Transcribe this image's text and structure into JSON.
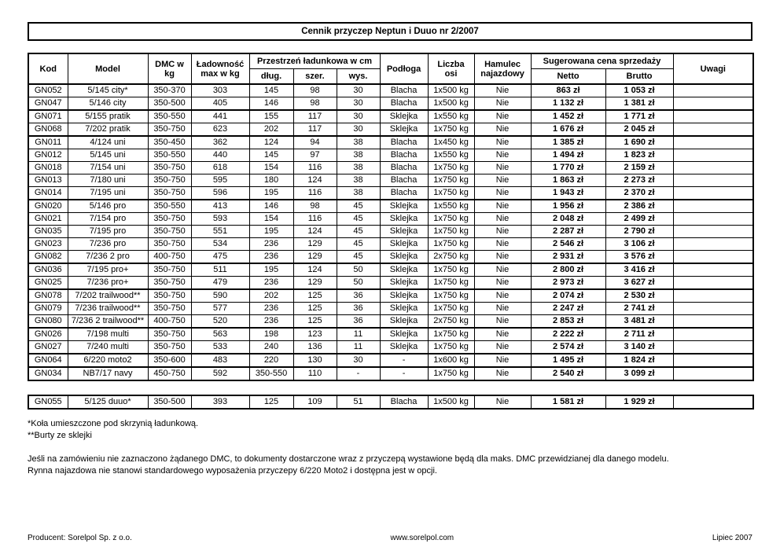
{
  "title": "Cennik przyczep Neptun i Duuo nr 2/2007",
  "table": {
    "headers": {
      "kod": "Kod",
      "model": "Model",
      "dmc": "DMC w\nkg",
      "ladownosc": "Ładowność\nmax w kg",
      "przestrzen": "Przestrzeń ładunkowa w cm",
      "dlug": "dług.",
      "szer": "szer.",
      "wys": "wys.",
      "podloga": "Podłoga",
      "osie": "Liczba\nosi",
      "hamulec": "Hamulec\nnajazdowy",
      "cena": "Sugerowana cena sprzedaży",
      "netto": "Netto",
      "brutto": "Brutto",
      "uwagi": "Uwagi"
    },
    "groups": [
      [
        {
          "kod": "GN052",
          "model": "5/145 city*",
          "dmc": "350-370",
          "ladownosc": "303",
          "dlug": "145",
          "szer": "98",
          "wys": "30",
          "podloga": "Blacha",
          "osie": "1x500 kg",
          "hamulec": "Nie",
          "netto": "863 zł",
          "brutto": "1 053 zł",
          "uwagi": ""
        },
        {
          "kod": "GN047",
          "model": "5/146 city",
          "dmc": "350-500",
          "ladownosc": "405",
          "dlug": "146",
          "szer": "98",
          "wys": "30",
          "podloga": "Blacha",
          "osie": "1x500 kg",
          "hamulec": "Nie",
          "netto": "1 132 zł",
          "brutto": "1 381 zł",
          "uwagi": ""
        }
      ],
      [
        {
          "kod": "GN071",
          "model": "5/155 pratik",
          "dmc": "350-550",
          "ladownosc": "441",
          "dlug": "155",
          "szer": "117",
          "wys": "30",
          "podloga": "Sklejka",
          "osie": "1x550 kg",
          "hamulec": "Nie",
          "netto": "1 452 zł",
          "brutto": "1 771 zł",
          "uwagi": ""
        },
        {
          "kod": "GN068",
          "model": "7/202 pratik",
          "dmc": "350-750",
          "ladownosc": "623",
          "dlug": "202",
          "szer": "117",
          "wys": "30",
          "podloga": "Sklejka",
          "osie": "1x750 kg",
          "hamulec": "Nie",
          "netto": "1 676 zł",
          "brutto": "2 045 zł",
          "uwagi": ""
        }
      ],
      [
        {
          "kod": "GN011",
          "model": "4/124 uni",
          "dmc": "350-450",
          "ladownosc": "362",
          "dlug": "124",
          "szer": "94",
          "wys": "38",
          "podloga": "Blacha",
          "osie": "1x450 kg",
          "hamulec": "Nie",
          "netto": "1 385 zł",
          "brutto": "1 690 zł",
          "uwagi": ""
        },
        {
          "kod": "GN012",
          "model": "5/145 uni",
          "dmc": "350-550",
          "ladownosc": "440",
          "dlug": "145",
          "szer": "97",
          "wys": "38",
          "podloga": "Blacha",
          "osie": "1x550 kg",
          "hamulec": "Nie",
          "netto": "1 494 zł",
          "brutto": "1 823 zł",
          "uwagi": ""
        },
        {
          "kod": "GN018",
          "model": "7/154 uni",
          "dmc": "350-750",
          "ladownosc": "618",
          "dlug": "154",
          "szer": "116",
          "wys": "38",
          "podloga": "Blacha",
          "osie": "1x750 kg",
          "hamulec": "Nie",
          "netto": "1 770 zł",
          "brutto": "2 159 zł",
          "uwagi": ""
        },
        {
          "kod": "GN013",
          "model": "7/180 uni",
          "dmc": "350-750",
          "ladownosc": "595",
          "dlug": "180",
          "szer": "124",
          "wys": "38",
          "podloga": "Blacha",
          "osie": "1x750 kg",
          "hamulec": "Nie",
          "netto": "1 863 zł",
          "brutto": "2 273 zł",
          "uwagi": ""
        },
        {
          "kod": "GN014",
          "model": "7/195 uni",
          "dmc": "350-750",
          "ladownosc": "596",
          "dlug": "195",
          "szer": "116",
          "wys": "38",
          "podloga": "Blacha",
          "osie": "1x750 kg",
          "hamulec": "Nie",
          "netto": "1 943 zł",
          "brutto": "2 370 zł",
          "uwagi": ""
        }
      ],
      [
        {
          "kod": "GN020",
          "model": "5/146 pro",
          "dmc": "350-550",
          "ladownosc": "413",
          "dlug": "146",
          "szer": "98",
          "wys": "45",
          "podloga": "Sklejka",
          "osie": "1x550 kg",
          "hamulec": "Nie",
          "netto": "1 956 zł",
          "brutto": "2 386 zł",
          "uwagi": ""
        },
        {
          "kod": "GN021",
          "model": "7/154 pro",
          "dmc": "350-750",
          "ladownosc": "593",
          "dlug": "154",
          "szer": "116",
          "wys": "45",
          "podloga": "Sklejka",
          "osie": "1x750 kg",
          "hamulec": "Nie",
          "netto": "2 048 zł",
          "brutto": "2 499 zł",
          "uwagi": ""
        },
        {
          "kod": "GN035",
          "model": "7/195 pro",
          "dmc": "350-750",
          "ladownosc": "551",
          "dlug": "195",
          "szer": "124",
          "wys": "45",
          "podloga": "Sklejka",
          "osie": "1x750 kg",
          "hamulec": "Nie",
          "netto": "2 287 zł",
          "brutto": "2 790 zł",
          "uwagi": ""
        },
        {
          "kod": "GN023",
          "model": "7/236 pro",
          "dmc": "350-750",
          "ladownosc": "534",
          "dlug": "236",
          "szer": "129",
          "wys": "45",
          "podloga": "Sklejka",
          "osie": "1x750 kg",
          "hamulec": "Nie",
          "netto": "2 546 zł",
          "brutto": "3 106 zł",
          "uwagi": ""
        },
        {
          "kod": "GN082",
          "model": "7/236 2 pro",
          "dmc": "400-750",
          "ladownosc": "475",
          "dlug": "236",
          "szer": "129",
          "wys": "45",
          "podloga": "Sklejka",
          "osie": "2x750 kg",
          "hamulec": "Nie",
          "netto": "2 931 zł",
          "brutto": "3 576 zł",
          "uwagi": ""
        }
      ],
      [
        {
          "kod": "GN036",
          "model": "7/195 pro+",
          "dmc": "350-750",
          "ladownosc": "511",
          "dlug": "195",
          "szer": "124",
          "wys": "50",
          "podloga": "Sklejka",
          "osie": "1x750 kg",
          "hamulec": "Nie",
          "netto": "2 800 zł",
          "brutto": "3 416 zł",
          "uwagi": ""
        },
        {
          "kod": "GN025",
          "model": "7/236 pro+",
          "dmc": "350-750",
          "ladownosc": "479",
          "dlug": "236",
          "szer": "129",
          "wys": "50",
          "podloga": "Sklejka",
          "osie": "1x750 kg",
          "hamulec": "Nie",
          "netto": "2 973 zł",
          "brutto": "3 627 zł",
          "uwagi": ""
        }
      ],
      [
        {
          "kod": "GN078",
          "model": "7/202 trailwood**",
          "dmc": "350-750",
          "ladownosc": "590",
          "dlug": "202",
          "szer": "125",
          "wys": "36",
          "podloga": "Sklejka",
          "osie": "1x750 kg",
          "hamulec": "Nie",
          "netto": "2 074 zł",
          "brutto": "2 530 zł",
          "uwagi": ""
        },
        {
          "kod": "GN079",
          "model": "7/236 trailwood**",
          "dmc": "350-750",
          "ladownosc": "577",
          "dlug": "236",
          "szer": "125",
          "wys": "36",
          "podloga": "Sklejka",
          "osie": "1x750 kg",
          "hamulec": "Nie",
          "netto": "2 247 zł",
          "brutto": "2 741 zł",
          "uwagi": ""
        },
        {
          "kod": "GN080",
          "model": "7/236 2 trailwood**",
          "dmc": "400-750",
          "ladownosc": "520",
          "dlug": "236",
          "szer": "125",
          "wys": "36",
          "podloga": "Sklejka",
          "osie": "2x750 kg",
          "hamulec": "Nie",
          "netto": "2 853 zł",
          "brutto": "3 481 zł",
          "uwagi": ""
        }
      ],
      [
        {
          "kod": "GN026",
          "model": "7/198 multi",
          "dmc": "350-750",
          "ladownosc": "563",
          "dlug": "198",
          "szer": "123",
          "wys": "11",
          "podloga": "Sklejka",
          "osie": "1x750 kg",
          "hamulec": "Nie",
          "netto": "2 222 zł",
          "brutto": "2 711 zł",
          "uwagi": ""
        },
        {
          "kod": "GN027",
          "model": "7/240 multi",
          "dmc": "350-750",
          "ladownosc": "533",
          "dlug": "240",
          "szer": "136",
          "wys": "11",
          "podloga": "Sklejka",
          "osie": "1x750 kg",
          "hamulec": "Nie",
          "netto": "2 574 zł",
          "brutto": "3 140 zł",
          "uwagi": ""
        }
      ],
      [
        {
          "kod": "GN064",
          "model": "6/220 moto2",
          "dmc": "350-600",
          "ladownosc": "483",
          "dlug": "220",
          "szer": "130",
          "wys": "30",
          "podloga": "-",
          "osie": "1x600 kg",
          "hamulec": "Nie",
          "netto": "1 495 zł",
          "brutto": "1 824 zł",
          "uwagi": ""
        }
      ],
      [
        {
          "kod": "GN034",
          "model": "NB7/17 navy",
          "dmc": "450-750",
          "ladownosc": "592",
          "dlug": "350-550",
          "szer": "110",
          "wys": "-",
          "podloga": "-",
          "osie": "1x750 kg",
          "hamulec": "Nie",
          "netto": "2 540 zł",
          "brutto": "3 099 zł",
          "uwagi": ""
        }
      ]
    ]
  },
  "extra_table": {
    "rows": [
      {
        "kod": "GN055",
        "model": "5/125 duuo*",
        "dmc": "350-500",
        "ladownosc": "393",
        "dlug": "125",
        "szer": "109",
        "wys": "51",
        "podloga": "Blacha",
        "osie": "1x500 kg",
        "hamulec": "Nie",
        "netto": "1 581 zł",
        "brutto": "1 929 zł",
        "uwagi": ""
      }
    ]
  },
  "footnotes": [
    "*Koła umieszczone pod skrzynią ładunkową.",
    "**Burty ze sklejki"
  ],
  "notes": [
    "Jeśli na zamówieniu nie zaznaczono żądanego DMC, to dokumenty dostarczone wraz z przyczepą wystawione będą dla maks. DMC przewidzianej dla danego modelu.",
    "Rynna najazdowa nie stanowi standardowego wyposażenia przyczepy 6/220 Moto2 i dostępna jest w opcji."
  ],
  "footer": {
    "producer": "Producent: Sorelpol Sp. z o.o.",
    "website": "www.sorelpol.com",
    "date": "Lipiec 2007"
  }
}
